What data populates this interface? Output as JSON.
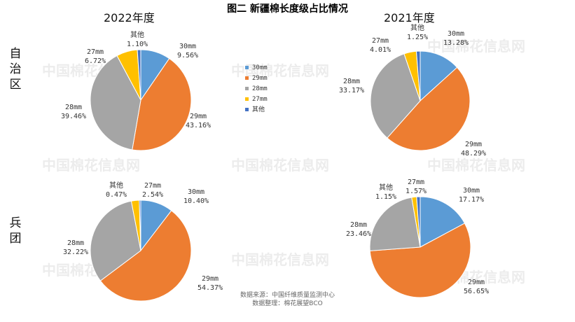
{
  "title": "图二 新疆棉长度级占比情况",
  "columns": [
    "2022年度",
    "2021年度"
  ],
  "rows": [
    "自治区",
    "兵团"
  ],
  "legend": [
    {
      "label": "30mm",
      "color": "#5b9bd5"
    },
    {
      "label": "29mm",
      "color": "#ed7d31"
    },
    {
      "label": "28mm",
      "color": "#a5a5a5"
    },
    {
      "label": "27mm",
      "color": "#ffc000"
    },
    {
      "label": "其他",
      "color": "#4472c4"
    }
  ],
  "watermark": "中国棉花信息网",
  "source_lines": [
    "数据来源：中国纤维质量监测中心",
    "数据整理：棉花展望BCO"
  ],
  "chart_data": [
    {
      "type": "pie",
      "title": "2022年度 自治区",
      "categories": [
        "30mm",
        "29mm",
        "28mm",
        "27mm",
        "其他"
      ],
      "values": [
        9.56,
        43.16,
        39.46,
        6.72,
        1.1
      ],
      "labels": [
        "9.56%",
        "43.16%",
        "39.46%",
        "6.72%",
        "1.10%"
      ]
    },
    {
      "type": "pie",
      "title": "2021年度 自治区",
      "categories": [
        "30mm",
        "29mm",
        "28mm",
        "27mm",
        "其他"
      ],
      "values": [
        13.28,
        48.29,
        33.17,
        4.01,
        1.25
      ],
      "labels": [
        "13.28%",
        "48.29%",
        "33.17%",
        "4.01%",
        "1.25%"
      ]
    },
    {
      "type": "pie",
      "title": "2022年度 兵团",
      "categories": [
        "30mm",
        "29mm",
        "28mm",
        "27mm",
        "其他"
      ],
      "values": [
        10.4,
        54.37,
        32.22,
        2.54,
        0.47
      ],
      "labels": [
        "10.40%",
        "54.37%",
        "32.22%",
        "2.54%",
        "0.47%"
      ]
    },
    {
      "type": "pie",
      "title": "2021年度 兵团",
      "categories": [
        "30mm",
        "29mm",
        "28mm",
        "27mm",
        "其他"
      ],
      "values": [
        17.17,
        56.65,
        23.46,
        1.57,
        1.15
      ],
      "labels": [
        "17.17%",
        "56.65%",
        "23.46%",
        "1.57%",
        "1.15%"
      ]
    }
  ]
}
